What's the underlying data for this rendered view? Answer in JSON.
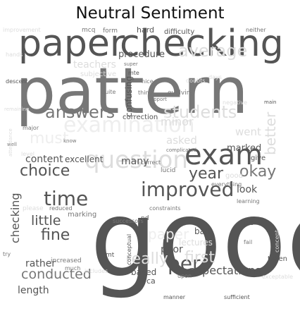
{
  "title": "Neutral Sentiment",
  "colors": {
    "dark": "#555555",
    "mid": "#777777",
    "light": "#dddddd",
    "pale": "#eeeeee"
  },
  "words": [
    {
      "text": "good",
      "shade": "dark"
    },
    {
      "text": "pattern",
      "shade": "mid"
    },
    {
      "text": "paper",
      "shade": "dark"
    },
    {
      "text": "checking",
      "shade": "dark"
    },
    {
      "text": "exam",
      "shade": "dark"
    },
    {
      "text": "question",
      "shade": "light"
    },
    {
      "text": "improved",
      "shade": "dark"
    },
    {
      "text": "time",
      "shade": "dark"
    },
    {
      "text": "answers",
      "shade": "mid"
    },
    {
      "text": "students",
      "shade": "light"
    },
    {
      "text": "average",
      "shade": "light"
    },
    {
      "text": "examination",
      "shade": "pale"
    },
    {
      "text": "must",
      "shade": "pale"
    },
    {
      "text": "paper",
      "shade": "pale"
    },
    {
      "text": "choice",
      "shade": "dark"
    },
    {
      "text": "year",
      "shade": "dark"
    },
    {
      "text": "okay",
      "shade": "mid"
    },
    {
      "text": "per",
      "shade": "dark"
    },
    {
      "text": "really",
      "shade": "light"
    },
    {
      "text": "first",
      "shade": "light"
    },
    {
      "text": "fine",
      "shade": "dark"
    },
    {
      "text": "little",
      "shade": "dark"
    },
    {
      "text": "conducted",
      "shade": "mid"
    },
    {
      "text": "expectations",
      "shade": "dark"
    },
    {
      "text": "content",
      "shade": "dark"
    },
    {
      "text": "rather",
      "shade": "dark"
    },
    {
      "text": "many",
      "shade": "dark"
    },
    {
      "text": "excellent",
      "shade": "dark"
    },
    {
      "text": "marked",
      "shade": "dark"
    },
    {
      "text": "went",
      "shade": "light"
    },
    {
      "text": "asked",
      "shade": "light"
    },
    {
      "text": "look",
      "shade": "dark"
    },
    {
      "text": "length",
      "shade": "dark"
    },
    {
      "text": "procedure",
      "shade": "dark"
    },
    {
      "text": "minor",
      "shade": "light"
    },
    {
      "text": "correction",
      "shade": "dark"
    },
    {
      "text": "difficulty",
      "shade": "dark"
    },
    {
      "text": "hard",
      "shade": "dark"
    },
    {
      "text": "form",
      "shade": "mid"
    },
    {
      "text": "mcq",
      "shade": "mid"
    },
    {
      "text": "improvement",
      "shade": "light"
    },
    {
      "text": "neither",
      "shade": "mid"
    },
    {
      "text": "descent",
      "shade": "dark"
    },
    {
      "text": "teachers",
      "shade": "light"
    },
    {
      "text": "subjective",
      "shade": "light"
    },
    {
      "text": "mte",
      "shade": "dark"
    },
    {
      "text": "days",
      "shade": "light"
    },
    {
      "text": "main",
      "shade": "dark"
    },
    {
      "text": "negative",
      "shade": "light"
    },
    {
      "text": "quite",
      "shade": "mid"
    },
    {
      "text": "nice",
      "shade": "mid"
    },
    {
      "text": "thing",
      "shade": "mid"
    },
    {
      "text": "evolving",
      "shade": "mid"
    },
    {
      "text": "doubts",
      "shade": "light"
    },
    {
      "text": "confusing",
      "shade": "dark"
    },
    {
      "text": "major",
      "shade": "mid"
    },
    {
      "text": "know",
      "shade": "mid"
    },
    {
      "text": "well",
      "shade": "mid"
    },
    {
      "text": "level",
      "shade": "light"
    },
    {
      "text": "attendance",
      "shade": "light"
    },
    {
      "text": "correct",
      "shade": "mid"
    },
    {
      "text": "lucid",
      "shade": "mid"
    },
    {
      "text": "complicated",
      "shade": "mid"
    },
    {
      "text": "give",
      "shade": "dark"
    },
    {
      "text": "everything",
      "shade": "mid"
    },
    {
      "text": "learning",
      "shade": "mid"
    },
    {
      "text": "marking",
      "shade": "mid"
    },
    {
      "text": "please",
      "shade": "light"
    },
    {
      "text": "reduced",
      "shade": "mid"
    },
    {
      "text": "successors",
      "shade": "mid"
    },
    {
      "text": "constraints",
      "shade": "mid"
    },
    {
      "text": "conceptual",
      "shade": "dark"
    },
    {
      "text": "nd",
      "shade": "dark"
    },
    {
      "text": "et",
      "shade": "dark"
    },
    {
      "text": "bad",
      "shade": "dark"
    },
    {
      "text": "bit",
      "shade": "dark"
    },
    {
      "text": "fail",
      "shade": "mid"
    },
    {
      "text": "concept",
      "shade": "light"
    },
    {
      "text": "poor",
      "shade": "dark"
    },
    {
      "text": "lectures",
      "shade": "light"
    },
    {
      "text": "mt",
      "shade": "dark"
    },
    {
      "text": "increased",
      "shade": "mid"
    },
    {
      "text": "much",
      "shade": "mid"
    },
    {
      "text": "try",
      "shade": "mid"
    },
    {
      "text": "includes",
      "shade": "light"
    },
    {
      "text": "based",
      "shade": "dark"
    },
    {
      "text": "ca",
      "shade": "dark"
    },
    {
      "text": "upon",
      "shade": "mid"
    },
    {
      "text": "taken",
      "shade": "dark"
    },
    {
      "text": "exceptable",
      "shade": "light"
    },
    {
      "text": "manner",
      "shade": "dark"
    },
    {
      "text": "sufficient",
      "shade": "dark"
    },
    {
      "text": "checking",
      "shade": "dark"
    },
    {
      "text": "better",
      "shade": "light"
    },
    {
      "text": "remaining",
      "shade": "light"
    },
    {
      "text": "hands",
      "shade": "light"
    },
    {
      "text": "good",
      "shade": "light"
    },
    {
      "text": "super",
      "shade": "mid"
    },
    {
      "text": "support",
      "shade": "mid"
    }
  ]
}
